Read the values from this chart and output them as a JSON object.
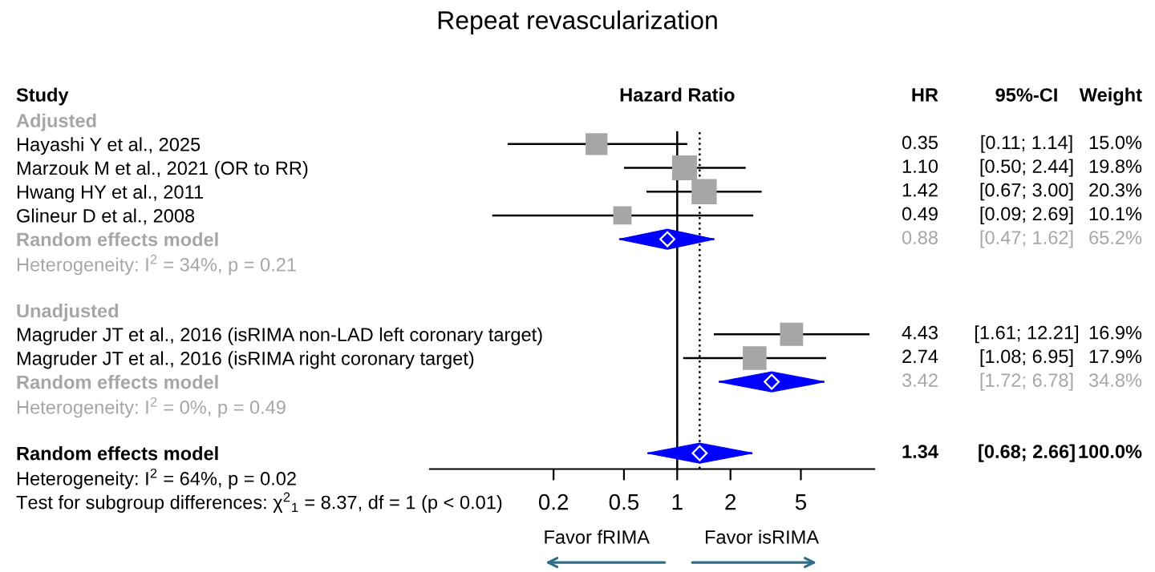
{
  "chart_data": {
    "type": "scatter",
    "orientation": "horizontal",
    "title": "Repeat revascularization",
    "log": "x",
    "xlim": [
      0.04,
      13
    ],
    "xticks": [
      0.2,
      0.5,
      1,
      2,
      5
    ],
    "categories": [
      "Adjusted",
      "Hayashi Y et al., 2025",
      "Marzouk M et al., 2021 (OR to RR)",
      "Hwang HY et al., 2011",
      "Glineur D et al., 2008",
      "Random effects model",
      "Heterogeneity: I$^{2}$ = 34%, p = 0.21",
      null,
      "Unadjusted",
      "Magruder JT et al., 2016 (isRIMA non-LAD left coronary target)",
      "Magruder JT et al., 2016 (isRIMA right coronary target)",
      "Random effects model",
      "Heterogeneity: I$^{2}$ = 0%, p = 0.49",
      null,
      "Random effects model",
      "Heterogeneity: I$^{2}$ = 64%, p = 0.02",
      "Test for subgroup differences: χ$^{2}$$_{1}$ = 8.37, df = 1 (p < 0.01)"
    ],
    "series": [
      {
        "marker": "square",
        "color": "#a6a6a6",
        "values": [
          null,
          0.35,
          1.1,
          1.42,
          0.49,
          null,
          null,
          null,
          null,
          4.43,
          2.74,
          null,
          null,
          null,
          null,
          null,
          null
        ],
        "errors": [
          null,
          [
            0.11,
            1.14
          ],
          [
            0.5,
            2.44
          ],
          [
            0.67,
            3.0
          ],
          [
            0.09,
            2.69
          ],
          null,
          null,
          null,
          null,
          [
            1.61,
            12.21
          ],
          [
            1.08,
            6.95
          ],
          null,
          null,
          null,
          null,
          null,
          null
        ],
        "sizes": [
          null,
          0.74,
          0.98,
          1,
          0.5,
          null,
          null,
          null,
          null,
          0.83,
          0.88,
          null,
          null,
          null,
          null,
          null,
          null
        ],
        "value_labels": [
          null,
          "0.35",
          "1.10",
          "1.42",
          "0.49",
          null,
          null,
          null,
          null,
          "4.43",
          "2.74",
          null,
          null,
          null,
          null,
          null,
          null
        ]
      },
      {
        "marker": "diamond",
        "color": "#0000ff",
        "values": [
          null,
          null,
          null,
          null,
          null,
          0.88,
          null,
          null,
          null,
          null,
          null,
          3.42,
          null,
          null,
          1.34,
          null,
          null
        ],
        "errors": [
          null,
          null,
          null,
          null,
          null,
          [
            0.47,
            1.62
          ],
          null,
          null,
          null,
          null,
          null,
          [
            1.72,
            6.78
          ],
          null,
          null,
          [
            0.68,
            2.66
          ],
          null,
          null
        ]
      }
    ],
    "ref_lines": [
      {
        "axis": "x",
        "value": 1,
        "color": "#000000",
        "line_style": "solid"
      },
      {
        "axis": "x",
        "value": 1.34,
        "color": "#000000",
        "line_style": "dotted"
      }
    ],
    "annotations": [
      "Study",
      "Hazard Ratio",
      "HR",
      "95%-CI",
      "Weight",
      "Favor fRIMA",
      "Favor isRIMA",
      "[0.11; 1.14]",
      "[0.50; 2.44]",
      "[0.67; 3.00]",
      "[0.09; 2.69]",
      "[0.47; 1.62]",
      "[1.61; 12.21]",
      "[1.08; 6.95]",
      "[1.72; 6.78]",
      "[0.68; 2.66]",
      "15.0%",
      "19.8%",
      "20.3%",
      "10.1%",
      "65.2%",
      "16.9%",
      "17.9%",
      "34.8%",
      "100.0%",
      "0.88",
      "3.42",
      "1.34"
    ]
  }
}
